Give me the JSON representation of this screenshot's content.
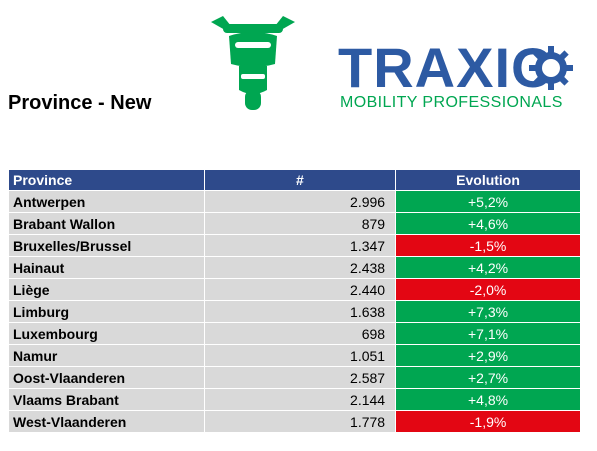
{
  "header": {
    "title": "Province - New",
    "logo": {
      "word": "TRAXIO",
      "tagline": "MOBILITY PROFESSIONALS"
    },
    "icon": "motorcycle-icon"
  },
  "colors": {
    "header_bg": "#2e4a8b",
    "cell_bg": "#d9d9d9",
    "positive": "#00a651",
    "negative": "#e30613",
    "brand_blue": "#2d5aa3",
    "brand_green": "#00a651"
  },
  "table": {
    "columns": [
      "Province",
      "#",
      "Evolution"
    ],
    "rows": [
      {
        "province": "Antwerpen",
        "count": "2.996",
        "evolution": "+5,2%",
        "trend": "pos"
      },
      {
        "province": "Brabant Wallon",
        "count": "879",
        "evolution": "+4,6%",
        "trend": "pos"
      },
      {
        "province": "Bruxelles/Brussel",
        "count": "1.347",
        "evolution": "-1,5%",
        "trend": "neg"
      },
      {
        "province": "Hainaut",
        "count": "2.438",
        "evolution": "+4,2%",
        "trend": "pos"
      },
      {
        "province": "Liège",
        "count": "2.440",
        "evolution": "-2,0%",
        "trend": "neg"
      },
      {
        "province": "Limburg",
        "count": "1.638",
        "evolution": "+7,3%",
        "trend": "pos"
      },
      {
        "province": "Luxembourg",
        "count": "698",
        "evolution": "+7,1%",
        "trend": "pos"
      },
      {
        "province": "Namur",
        "count": "1.051",
        "evolution": "+2,9%",
        "trend": "pos"
      },
      {
        "province": "Oost-Vlaanderen",
        "count": "2.587",
        "evolution": "+2,7%",
        "trend": "pos"
      },
      {
        "province": "Vlaams Brabant",
        "count": "2.144",
        "evolution": "+4,8%",
        "trend": "pos"
      },
      {
        "province": "West-Vlaanderen",
        "count": "1.778",
        "evolution": "-1,9%",
        "trend": "neg"
      }
    ]
  }
}
